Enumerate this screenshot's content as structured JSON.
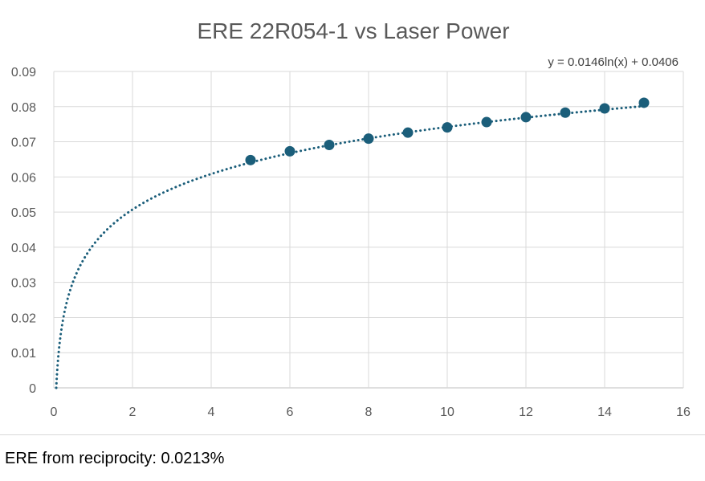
{
  "chart_data": {
    "type": "scatter",
    "title": "ERE 22R054-1 vs Laser Power",
    "xlabel": "",
    "ylabel": "",
    "xlim": [
      0,
      16
    ],
    "ylim": [
      0,
      0.09
    ],
    "x_ticks": [
      "0",
      "2",
      "4",
      "6",
      "8",
      "10",
      "12",
      "14",
      "16"
    ],
    "y_ticks": [
      "0",
      "0.01",
      "0.02",
      "0.03",
      "0.04",
      "0.05",
      "0.06",
      "0.07",
      "0.08",
      "0.09"
    ],
    "grid": true,
    "legend": "none",
    "series": [
      {
        "x": [
          5,
          6,
          7,
          8,
          9,
          10,
          11,
          12,
          13,
          14,
          15
        ],
        "y": [
          0.0648,
          0.0673,
          0.0691,
          0.0709,
          0.0726,
          0.0741,
          0.0756,
          0.077,
          0.0783,
          0.0795,
          0.0811
        ],
        "color": "#1b5e7a"
      }
    ],
    "trendline": {
      "type": "logarithmic",
      "coefficient": 0.0146,
      "intercept": 0.0406,
      "equation": "y = 0.0146ln(x) + 0.0406",
      "style": "dotted",
      "color": "#1b5e7a"
    }
  },
  "footer": {
    "note": "ERE from reciprocity: 0.0213%"
  }
}
